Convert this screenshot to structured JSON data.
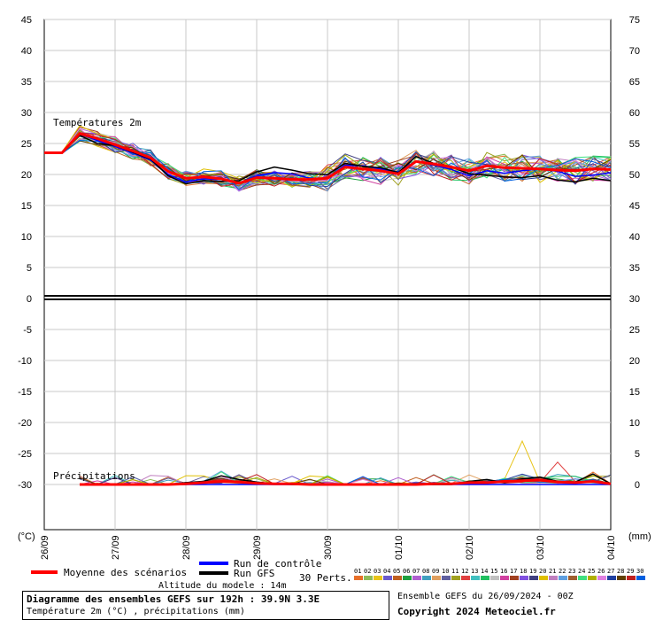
{
  "chart_data": {
    "type": "line",
    "title": "Diagramme des ensembles GEFS sur 192h : 39.9N 3.3E",
    "subtitle": "Température 2m (°C) , précipitations (mm)",
    "panel_labels": {
      "temperature": "Températures 2m",
      "precipitation": "Précipitations"
    },
    "left_axis": {
      "unit_label": "(°C)",
      "ticks": [
        45,
        40,
        35,
        30,
        25,
        20,
        15,
        10,
        5,
        0,
        -5,
        -10,
        -15,
        -20,
        -25,
        -30
      ],
      "range": [
        -30,
        45
      ]
    },
    "right_axis": {
      "unit_label": "(mm)",
      "ticks": [
        75,
        70,
        65,
        60,
        55,
        50,
        45,
        40,
        35,
        30,
        25,
        20,
        15,
        10,
        5,
        0
      ],
      "range": [
        0,
        75
      ]
    },
    "x_ticks": [
      "26/09",
      "27/09",
      "28/09",
      "29/09",
      "30/09",
      "01/10",
      "02/10",
      "03/10",
      "04/10"
    ],
    "grid": true,
    "x_hours": [
      0,
      6,
      12,
      18,
      24,
      30,
      36,
      42,
      48,
      54,
      60,
      66,
      72,
      78,
      84,
      90,
      96,
      102,
      108,
      114,
      120,
      126,
      132,
      138,
      144,
      150,
      156,
      162,
      168,
      174,
      180,
      186,
      192
    ],
    "series": [
      {
        "name": "Moyenne des scénarios",
        "color": "#ff0000",
        "temperature": [
          23.5,
          23.5,
          26.6,
          25.8,
          24.8,
          23.8,
          22.7,
          20.5,
          19.4,
          19.6,
          19.3,
          18.6,
          19.5,
          19.4,
          19.2,
          19.2,
          19.4,
          21.2,
          20.9,
          20.6,
          20.1,
          22.1,
          21.7,
          21.2,
          20.6,
          21.4,
          21.1,
          21.0,
          20.9,
          20.7,
          20.6,
          20.9,
          20.8
        ],
        "precipitation": [
          null,
          null,
          0,
          0,
          0,
          0,
          0,
          0,
          0.1,
          0.3,
          0.5,
          0.4,
          0.2,
          0.1,
          0.1,
          0,
          0,
          0,
          0,
          0,
          0,
          0,
          0.1,
          0.1,
          0.3,
          0.3,
          0.5,
          0.6,
          0.7,
          0.4,
          0.3,
          0.5,
          0.1
        ]
      },
      {
        "name": "Run de contrôle",
        "color": "#0000ff",
        "temperature": [
          23.5,
          23.5,
          26.5,
          25.5,
          24.5,
          23.5,
          22.3,
          20.0,
          18.8,
          19.3,
          19.2,
          18.6,
          19.8,
          20.3,
          20.1,
          19.4,
          19.4,
          21.5,
          21.4,
          20.9,
          20.4,
          22.2,
          21.5,
          20.8,
          19.8,
          20.6,
          20.2,
          20.6,
          20.9,
          20.5,
          19.7,
          19.9,
          20.3
        ],
        "precipitation": [
          null,
          null,
          0,
          0,
          0,
          0,
          0,
          0,
          0,
          0,
          0,
          0,
          0,
          0,
          0,
          0,
          0,
          0,
          0,
          0,
          0,
          0,
          0,
          0,
          0,
          0,
          0,
          0,
          0,
          0,
          0,
          0,
          0
        ]
      },
      {
        "name": "Run GFS",
        "color": "#000000",
        "temperature": [
          23.5,
          23.5,
          26.3,
          25.0,
          24.7,
          23.6,
          22.5,
          19.8,
          18.5,
          19.0,
          18.9,
          19.0,
          20.4,
          21.2,
          20.7,
          20.1,
          20.0,
          21.8,
          21.3,
          21.1,
          20.3,
          22.9,
          21.8,
          21.2,
          20.1,
          19.9,
          19.6,
          19.5,
          19.8,
          19.1,
          18.8,
          19.4,
          19.0
        ],
        "precipitation": [
          null,
          null,
          0,
          0,
          0,
          0,
          0,
          0,
          0.3,
          0.5,
          1.4,
          0.8,
          0.4,
          0.1,
          0,
          0,
          0,
          0,
          0,
          0,
          0,
          0,
          0,
          0,
          0.5,
          0.8,
          0.3,
          0.9,
          1.2,
          0.5,
          0.4,
          1.7,
          0.1
        ]
      }
    ],
    "perturbation_count": 30
  },
  "legend": {
    "mean_label": "Moyenne des scénarios",
    "control_label": "Run de contrôle",
    "gfs_label": "Run GFS",
    "perts_label": "30 Perts.",
    "pert_numbers": [
      "01",
      "02",
      "03",
      "04",
      "05",
      "06",
      "07",
      "08",
      "09",
      "10",
      "11",
      "12",
      "13",
      "14",
      "15",
      "16",
      "17",
      "18",
      "19",
      "20",
      "21",
      "22",
      "23",
      "24",
      "25",
      "26",
      "27",
      "28",
      "29",
      "30"
    ],
    "pert_colors": [
      "#e8702a",
      "#8fbc5a",
      "#e8c41a",
      "#6a5acd",
      "#c06020",
      "#20a040",
      "#b060d0",
      "#40a0c0",
      "#e0a060",
      "#6060a0",
      "#a0a020",
      "#e04040",
      "#40c0c0",
      "#20c060",
      "#c0c0c0",
      "#d040a0",
      "#a04020",
      "#8050e0",
      "#404080",
      "#e0c000",
      "#c080c0",
      "#60a0e0",
      "#a06030",
      "#40e080",
      "#b0b000",
      "#e080e0",
      "#2040a0",
      "#604000",
      "#c02020",
      "#0060e0"
    ]
  },
  "footer": {
    "altitude": "Altitude du modele : 14m",
    "ensemble": "Ensemble GEFS du 26/09/2024 - 00Z",
    "copyright": "Copyright 2024 Meteociel.fr"
  }
}
